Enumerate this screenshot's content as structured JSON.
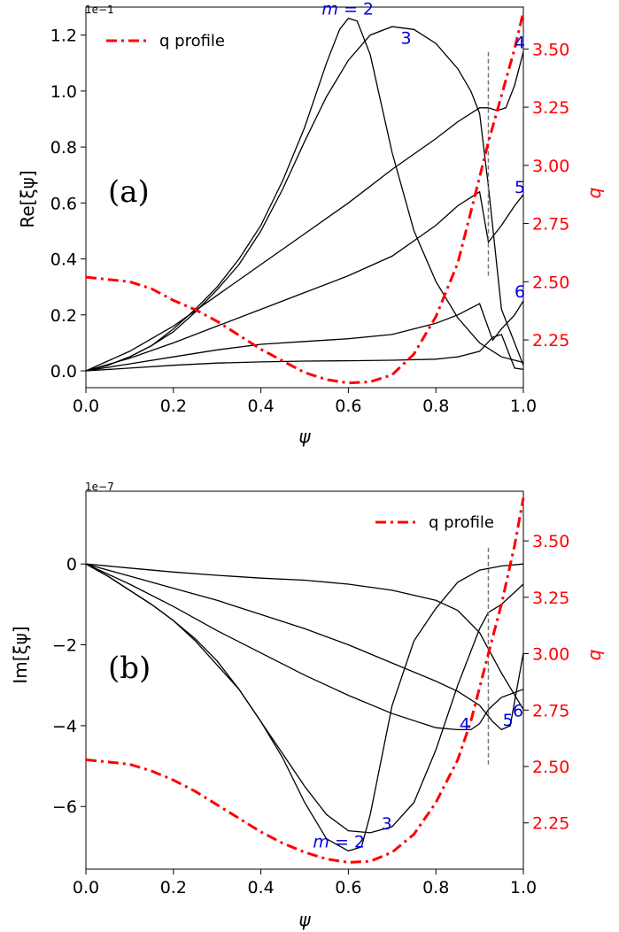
{
  "chart_data": [
    {
      "type": "line",
      "panel_label": "(a)",
      "xlabel": "ψ",
      "ylabel": "Re[ξψ]",
      "y2label": "q",
      "exponent_label": "1e−1",
      "xlim": [
        0.0,
        1.0
      ],
      "ylim": [
        -0.06,
        1.3
      ],
      "y2lim": [
        2.045,
        3.68
      ],
      "x_ticks": [
        "0.0",
        "0.2",
        "0.4",
        "0.6",
        "0.8",
        "1.0"
      ],
      "y_ticks": [
        "0.0",
        "0.2",
        "0.4",
        "0.6",
        "0.8",
        "1.0",
        "1.2"
      ],
      "y2_ticks": [
        "2.25",
        "2.50",
        "2.75",
        "3.00",
        "3.25",
        "3.50"
      ],
      "legend": {
        "label": "q profile",
        "placement": "top-left"
      },
      "vline_x": 0.92,
      "series": [
        {
          "name": "m=2",
          "label": "m = 2",
          "x": [
            0,
            0.05,
            0.1,
            0.15,
            0.2,
            0.25,
            0.3,
            0.35,
            0.4,
            0.45,
            0.5,
            0.55,
            0.58,
            0.6,
            0.62,
            0.65,
            0.7,
            0.75,
            0.8,
            0.85,
            0.9,
            0.95,
            1.0
          ],
          "y": [
            0,
            0.02,
            0.05,
            0.09,
            0.15,
            0.22,
            0.3,
            0.4,
            0.52,
            0.68,
            0.87,
            1.1,
            1.22,
            1.26,
            1.25,
            1.13,
            0.78,
            0.5,
            0.32,
            0.19,
            0.1,
            0.05,
            0.03
          ]
        },
        {
          "name": "m=3",
          "label": "3",
          "x": [
            0,
            0.05,
            0.1,
            0.15,
            0.2,
            0.25,
            0.3,
            0.35,
            0.4,
            0.45,
            0.5,
            0.55,
            0.6,
            0.65,
            0.7,
            0.75,
            0.8,
            0.85,
            0.88,
            0.9,
            0.92,
            0.95,
            1.0
          ],
          "y": [
            0,
            0.02,
            0.05,
            0.09,
            0.14,
            0.21,
            0.29,
            0.38,
            0.5,
            0.65,
            0.82,
            0.98,
            1.11,
            1.2,
            1.23,
            1.22,
            1.17,
            1.08,
            1.0,
            0.92,
            0.66,
            0.22,
            0.02
          ]
        },
        {
          "name": "m=4",
          "label": "4",
          "x": [
            0,
            0.1,
            0.2,
            0.3,
            0.4,
            0.5,
            0.6,
            0.7,
            0.8,
            0.85,
            0.9,
            0.92,
            0.94,
            0.96,
            0.98,
            1.0
          ],
          "y": [
            0,
            0.07,
            0.16,
            0.27,
            0.38,
            0.49,
            0.6,
            0.72,
            0.83,
            0.89,
            0.94,
            0.94,
            0.93,
            0.94,
            1.02,
            1.14
          ]
        },
        {
          "name": "m=5",
          "label": "5",
          "x": [
            0,
            0.1,
            0.2,
            0.3,
            0.4,
            0.5,
            0.6,
            0.7,
            0.8,
            0.85,
            0.9,
            0.92,
            0.95,
            0.98,
            1.0
          ],
          "y": [
            0,
            0.045,
            0.1,
            0.16,
            0.22,
            0.28,
            0.34,
            0.41,
            0.52,
            0.59,
            0.64,
            0.46,
            0.52,
            0.59,
            0.63
          ]
        },
        {
          "name": "m=6",
          "label": "6",
          "x": [
            0,
            0.1,
            0.2,
            0.3,
            0.4,
            0.5,
            0.6,
            0.7,
            0.8,
            0.85,
            0.9,
            0.93,
            0.95,
            0.98,
            1.0
          ],
          "y": [
            0,
            0.025,
            0.05,
            0.075,
            0.095,
            0.105,
            0.115,
            0.13,
            0.17,
            0.2,
            0.24,
            0.11,
            0.15,
            0.2,
            0.25
          ]
        },
        {
          "name": "m=7",
          "label": "",
          "x": [
            0,
            0.1,
            0.2,
            0.3,
            0.4,
            0.5,
            0.6,
            0.7,
            0.8,
            0.85,
            0.9,
            0.93,
            0.95,
            0.98,
            1.0
          ],
          "y": [
            0,
            0.01,
            0.02,
            0.028,
            0.032,
            0.035,
            0.036,
            0.038,
            0.042,
            0.05,
            0.07,
            0.12,
            0.13,
            0.01,
            0.005
          ]
        }
      ],
      "q_profile": {
        "x": [
          0,
          0.05,
          0.1,
          0.15,
          0.2,
          0.25,
          0.3,
          0.35,
          0.4,
          0.45,
          0.5,
          0.55,
          0.6,
          0.65,
          0.7,
          0.75,
          0.8,
          0.85,
          0.88,
          0.9,
          0.92,
          0.95,
          0.98,
          1.0
        ],
        "y": [
          2.52,
          2.51,
          2.5,
          2.47,
          2.42,
          2.38,
          2.33,
          2.27,
          2.21,
          2.16,
          2.11,
          2.08,
          2.065,
          2.07,
          2.1,
          2.19,
          2.35,
          2.58,
          2.8,
          2.95,
          3.1,
          3.3,
          3.5,
          3.66
        ]
      }
    },
    {
      "type": "line",
      "panel_label": "(b)",
      "xlabel": "ψ",
      "ylabel": "Im[ξψ]",
      "y2label": "q",
      "exponent_label": "1e−7",
      "xlim": [
        0.0,
        1.0
      ],
      "ylim": [
        -7.55,
        1.8
      ],
      "y2lim": [
        2.045,
        3.72
      ],
      "x_ticks": [
        "0.0",
        "0.2",
        "0.4",
        "0.6",
        "0.8",
        "1.0"
      ],
      "y_ticks": [
        "−6",
        "−4",
        "−2",
        "0"
      ],
      "y2_ticks": [
        "2.25",
        "2.50",
        "2.75",
        "3.00",
        "3.25",
        "3.50"
      ],
      "legend": {
        "label": "q profile",
        "placement": "top-right"
      },
      "vline_x": 0.92,
      "series": [
        {
          "name": "m=2",
          "label": "m = 2",
          "x": [
            0,
            0.05,
            0.1,
            0.15,
            0.2,
            0.25,
            0.3,
            0.35,
            0.4,
            0.45,
            0.5,
            0.55,
            0.6,
            0.63,
            0.65,
            0.7,
            0.75,
            0.8,
            0.85,
            0.9,
            0.95,
            1.0
          ],
          "y": [
            0,
            -0.3,
            -0.65,
            -1.0,
            -1.4,
            -1.85,
            -2.4,
            -3.1,
            -3.9,
            -4.8,
            -5.9,
            -6.8,
            -7.1,
            -7.0,
            -6.2,
            -3.5,
            -1.9,
            -1.1,
            -0.45,
            -0.15,
            -0.05,
            0
          ]
        },
        {
          "name": "m=3",
          "label": "3",
          "x": [
            0,
            0.05,
            0.1,
            0.15,
            0.2,
            0.25,
            0.3,
            0.35,
            0.4,
            0.45,
            0.5,
            0.55,
            0.6,
            0.65,
            0.7,
            0.75,
            0.8,
            0.85,
            0.9,
            0.92,
            0.95,
            1.0
          ],
          "y": [
            0,
            -0.3,
            -0.65,
            -1.0,
            -1.4,
            -1.9,
            -2.5,
            -3.1,
            -3.9,
            -4.7,
            -5.5,
            -6.2,
            -6.6,
            -6.65,
            -6.5,
            -5.9,
            -4.6,
            -3.0,
            -1.6,
            -1.2,
            -1.0,
            -0.5
          ]
        },
        {
          "name": "m=4",
          "label": "4",
          "x": [
            0,
            0.1,
            0.2,
            0.3,
            0.4,
            0.5,
            0.6,
            0.7,
            0.8,
            0.85,
            0.88,
            0.9,
            0.92,
            0.95,
            1.0
          ],
          "y": [
            0,
            -0.5,
            -1.05,
            -1.65,
            -2.2,
            -2.75,
            -3.25,
            -3.7,
            -4.05,
            -4.1,
            -4.1,
            -3.95,
            -3.6,
            -3.3,
            -3.1
          ]
        },
        {
          "name": "m=5",
          "label": "5",
          "x": [
            0,
            0.1,
            0.2,
            0.3,
            0.4,
            0.5,
            0.6,
            0.7,
            0.8,
            0.85,
            0.9,
            0.93,
            0.95,
            0.97,
            1.0
          ],
          "y": [
            0,
            -0.3,
            -0.6,
            -0.9,
            -1.25,
            -1.6,
            -2.0,
            -2.45,
            -2.9,
            -3.15,
            -3.5,
            -3.9,
            -4.1,
            -4.0,
            -2.2
          ]
        },
        {
          "name": "m=6",
          "label": "6",
          "x": [
            0,
            0.1,
            0.2,
            0.3,
            0.4,
            0.5,
            0.6,
            0.7,
            0.8,
            0.85,
            0.9,
            0.95,
            1.0
          ],
          "y": [
            0,
            -0.1,
            -0.2,
            -0.28,
            -0.35,
            -0.4,
            -0.5,
            -0.65,
            -0.9,
            -1.15,
            -1.7,
            -2.7,
            -3.6
          ]
        }
      ],
      "q_profile": {
        "x": [
          0,
          0.05,
          0.1,
          0.15,
          0.2,
          0.25,
          0.3,
          0.35,
          0.4,
          0.45,
          0.5,
          0.55,
          0.6,
          0.65,
          0.7,
          0.75,
          0.8,
          0.85,
          0.88,
          0.9,
          0.92,
          0.95,
          0.98,
          1.0
        ],
        "y": [
          2.53,
          2.52,
          2.51,
          2.48,
          2.44,
          2.39,
          2.33,
          2.27,
          2.21,
          2.16,
          2.12,
          2.09,
          2.075,
          2.08,
          2.12,
          2.2,
          2.34,
          2.53,
          2.7,
          2.85,
          3.0,
          3.22,
          3.48,
          3.69
        ]
      }
    }
  ]
}
